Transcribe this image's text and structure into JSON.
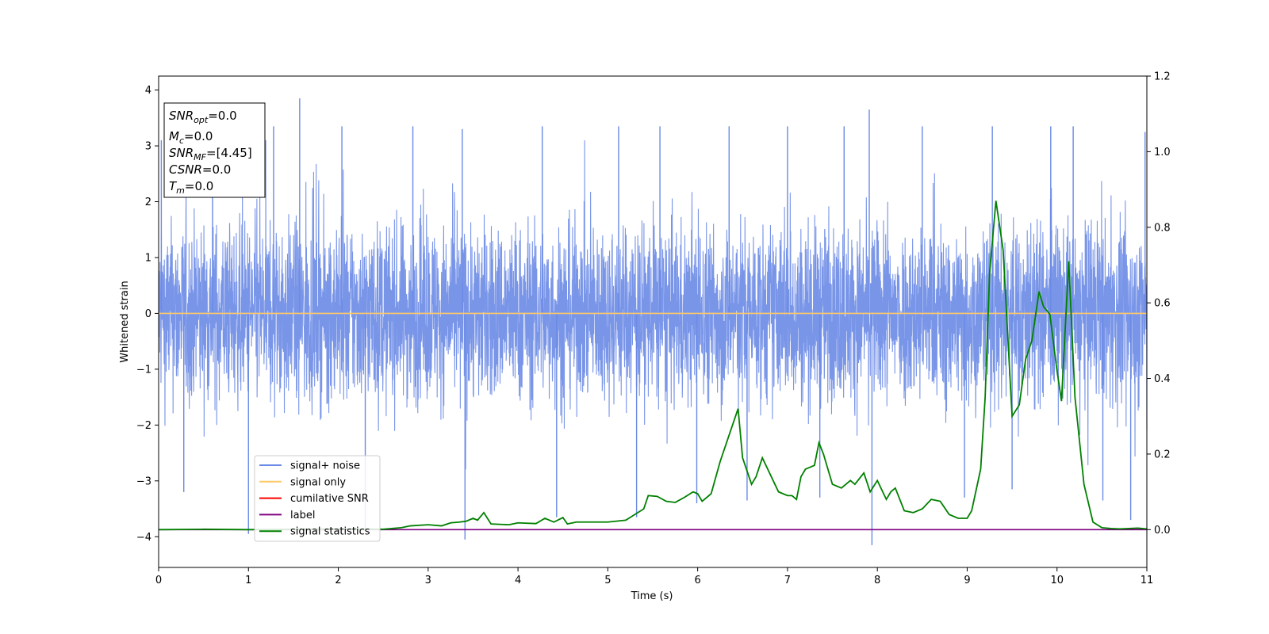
{
  "chart_data": {
    "type": "line",
    "title": "",
    "xlabel": "Time (s)",
    "ylabel": "Whitened strain",
    "xlim": [
      0,
      11
    ],
    "ylim": [
      -4.55,
      4.25
    ],
    "y2lim": [
      -0.1,
      1.2
    ],
    "x_ticks": [
      "0",
      "1",
      "2",
      "3",
      "4",
      "5",
      "6",
      "7",
      "8",
      "9",
      "10",
      "11"
    ],
    "y_ticks": [
      "−4",
      "−3",
      "−2",
      "−1",
      "0",
      "1",
      "2",
      "3",
      "4"
    ],
    "y2_ticks": [
      "0.0",
      "0.2",
      "0.4",
      "0.6",
      "0.8",
      "1.0",
      "1.2"
    ],
    "grid": false,
    "legend": {
      "placement": "lower-left",
      "entries": [
        {
          "label": "signal+ noise",
          "color": "#6a8ae6"
        },
        {
          "label": "signal only",
          "color": "#ffc966"
        },
        {
          "label": "cumilative SNR",
          "color": "#ff0000"
        },
        {
          "label": "label",
          "color": "#800080"
        },
        {
          "label": "signal statistics",
          "color": "#008000"
        }
      ]
    },
    "annotation": {
      "lines": [
        {
          "main": "SNR",
          "sub": "opt",
          "value": "=0.0"
        },
        {
          "main": "M",
          "sub": "c",
          "value": "=0.0"
        },
        {
          "main": "SNR",
          "sub": "MF",
          "value": "=[4.45]"
        },
        {
          "main": "CSNR",
          "sub": "",
          "value": "=0.0"
        },
        {
          "main": "T",
          "sub": "m",
          "value": "=0.0"
        }
      ]
    },
    "series": [
      {
        "name": "signal+ noise",
        "axis": "left",
        "color": "#6a8ae6",
        "style": "dense noise",
        "y_range": [
          -4.15,
          3.85
        ],
        "spikes": [
          {
            "x": 0.03,
            "y": 3.1
          },
          {
            "x": 0.28,
            "y": -3.2
          },
          {
            "x": 0.6,
            "y": 3.2
          },
          {
            "x": 1.0,
            "y": -3.95
          },
          {
            "x": 1.28,
            "y": 3.35
          },
          {
            "x": 1.57,
            "y": 3.85
          },
          {
            "x": 2.04,
            "y": 3.35
          },
          {
            "x": 2.3,
            "y": -3.9
          },
          {
            "x": 2.83,
            "y": 3.35
          },
          {
            "x": 3.41,
            "y": -4.05
          },
          {
            "x": 3.38,
            "y": 3.3
          },
          {
            "x": 4.27,
            "y": 3.35
          },
          {
            "x": 4.43,
            "y": -3.65
          },
          {
            "x": 5.12,
            "y": 3.35
          },
          {
            "x": 5.32,
            "y": -3.65
          },
          {
            "x": 5.58,
            "y": 3.35
          },
          {
            "x": 5.99,
            "y": -3.4
          },
          {
            "x": 6.35,
            "y": 3.35
          },
          {
            "x": 6.55,
            "y": -3.35
          },
          {
            "x": 7.0,
            "y": 3.35
          },
          {
            "x": 7.36,
            "y": -3.3
          },
          {
            "x": 7.63,
            "y": 3.35
          },
          {
            "x": 7.91,
            "y": 3.65
          },
          {
            "x": 7.94,
            "y": -4.15
          },
          {
            "x": 8.5,
            "y": 3.35
          },
          {
            "x": 8.97,
            "y": -3.3
          },
          {
            "x": 9.28,
            "y": 3.35
          },
          {
            "x": 9.5,
            "y": -3.15
          },
          {
            "x": 9.93,
            "y": 3.35
          },
          {
            "x": 10.18,
            "y": 3.35
          },
          {
            "x": 10.51,
            "y": -3.35
          },
          {
            "x": 10.82,
            "y": -3.7
          },
          {
            "x": 10.98,
            "y": 3.25
          }
        ]
      },
      {
        "name": "signal only",
        "axis": "left",
        "color": "#ffc966",
        "x": [
          0,
          11
        ],
        "y": [
          0,
          0
        ]
      },
      {
        "name": "label",
        "axis": "right",
        "color": "#800080",
        "x": [
          0,
          11
        ],
        "y": [
          0,
          0
        ]
      },
      {
        "name": "signal statistics",
        "axis": "right",
        "color": "#008000",
        "x": [
          0,
          0.5,
          1.0,
          1.5,
          2.0,
          2.5,
          2.7,
          2.8,
          3.0,
          3.15,
          3.25,
          3.35,
          3.42,
          3.5,
          3.55,
          3.62,
          3.7,
          3.9,
          4.0,
          4.2,
          4.3,
          4.4,
          4.5,
          4.55,
          4.65,
          4.8,
          5.0,
          5.2,
          5.3,
          5.4,
          5.45,
          5.55,
          5.65,
          5.75,
          5.85,
          5.95,
          6.0,
          6.05,
          6.15,
          6.25,
          6.35,
          6.45,
          6.5,
          6.6,
          6.65,
          6.72,
          6.8,
          6.9,
          7.0,
          7.05,
          7.1,
          7.15,
          7.2,
          7.3,
          7.35,
          7.4,
          7.45,
          7.5,
          7.6,
          7.7,
          7.75,
          7.85,
          7.92,
          8.0,
          8.1,
          8.15,
          8.2,
          8.3,
          8.4,
          8.5,
          8.6,
          8.7,
          8.8,
          8.9,
          9.0,
          9.05,
          9.15,
          9.2,
          9.25,
          9.32,
          9.4,
          9.5,
          9.58,
          9.65,
          9.72,
          9.8,
          9.85,
          9.92,
          10.0,
          10.05,
          10.13,
          10.2,
          10.3,
          10.4,
          10.5,
          10.6,
          10.7,
          10.8,
          10.9,
          11.0
        ],
        "y": [
          0.0,
          0.001,
          0.0,
          0.001,
          0.002,
          0.001,
          0.005,
          0.01,
          0.013,
          0.01,
          0.018,
          0.02,
          0.022,
          0.03,
          0.025,
          0.045,
          0.015,
          0.013,
          0.018,
          0.016,
          0.03,
          0.02,
          0.032,
          0.015,
          0.02,
          0.02,
          0.02,
          0.025,
          0.04,
          0.055,
          0.09,
          0.088,
          0.075,
          0.072,
          0.085,
          0.1,
          0.095,
          0.075,
          0.095,
          0.18,
          0.25,
          0.32,
          0.19,
          0.12,
          0.14,
          0.19,
          0.15,
          0.1,
          0.09,
          0.09,
          0.08,
          0.14,
          0.16,
          0.17,
          0.23,
          0.2,
          0.16,
          0.12,
          0.11,
          0.13,
          0.12,
          0.15,
          0.1,
          0.13,
          0.08,
          0.1,
          0.11,
          0.05,
          0.045,
          0.055,
          0.08,
          0.075,
          0.04,
          0.03,
          0.03,
          0.05,
          0.16,
          0.35,
          0.68,
          0.87,
          0.74,
          0.3,
          0.33,
          0.45,
          0.5,
          0.63,
          0.59,
          0.57,
          0.42,
          0.34,
          0.71,
          0.35,
          0.12,
          0.02,
          0.005,
          0.003,
          0.002,
          0.003,
          0.004,
          0.002
        ]
      }
    ]
  }
}
